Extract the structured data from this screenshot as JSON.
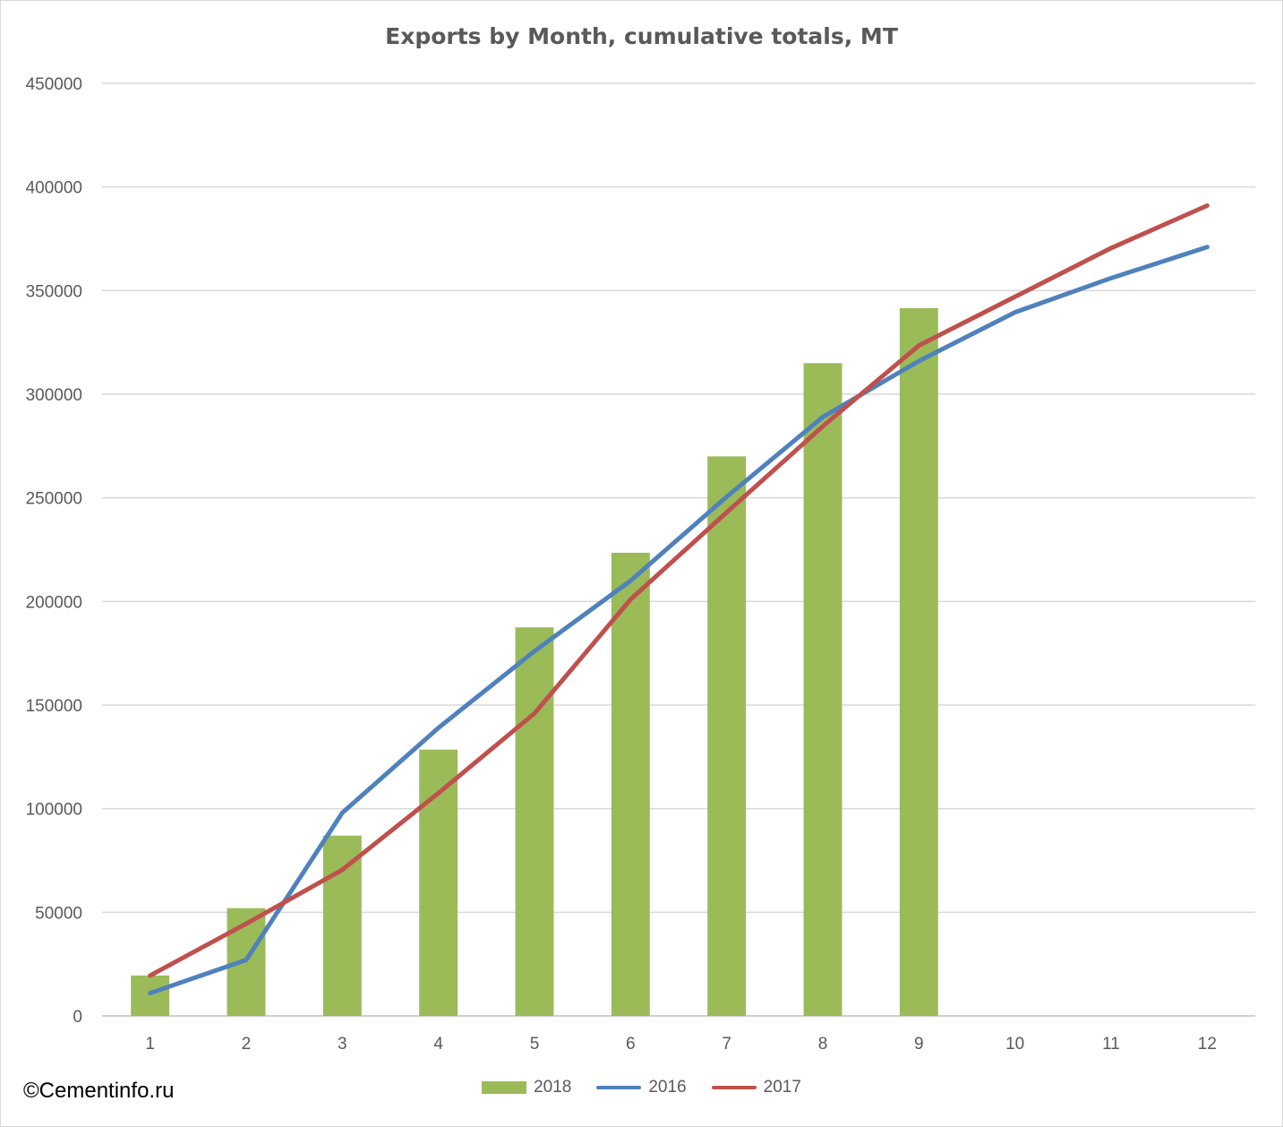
{
  "chart_data": {
    "type": "bar",
    "title": "Exports by Month, cumulative totals, MT",
    "xlabel": "",
    "ylabel": "",
    "categories": [
      "1",
      "2",
      "3",
      "4",
      "5",
      "6",
      "7",
      "8",
      "9",
      "10",
      "11",
      "12"
    ],
    "yticks": [
      "0",
      "50000",
      "100000",
      "150000",
      "200000",
      "250000",
      "300000",
      "350000",
      "400000",
      "450000"
    ],
    "ylim": [
      0,
      450000
    ],
    "grid": true,
    "legend_position": "bottom",
    "series": [
      {
        "name": "2018",
        "type": "bar",
        "color": "#9bbb59",
        "values": [
          19500,
          52000,
          87000,
          128500,
          187500,
          223500,
          270000,
          315000,
          341500,
          null,
          null,
          null
        ]
      },
      {
        "name": "2016",
        "type": "line",
        "color": "#4f81bd",
        "values": [
          11000,
          27000,
          98000,
          139000,
          176000,
          210000,
          250500,
          289000,
          316000,
          339500,
          356000,
          371000
        ]
      },
      {
        "name": "2017",
        "type": "line",
        "color": "#c0504d",
        "values": [
          19500,
          44500,
          70500,
          107500,
          146000,
          201000,
          243000,
          284500,
          323500,
          347000,
          370500,
          391000
        ]
      }
    ]
  },
  "credit": "©Cementinfo.ru"
}
